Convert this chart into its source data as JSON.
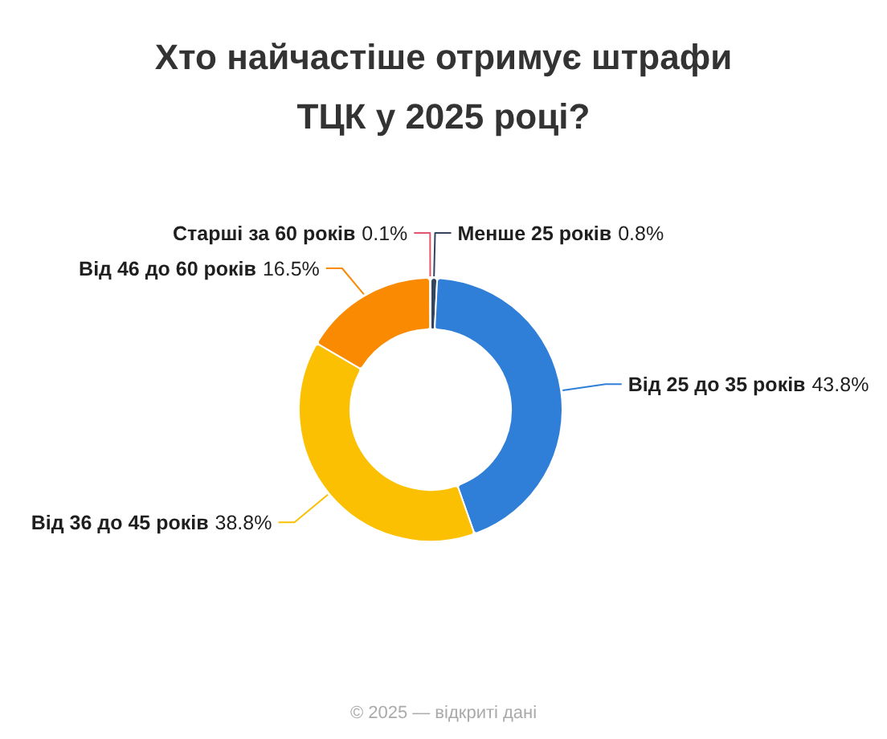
{
  "chart_data": {
    "type": "donut",
    "title": "Хто найчастіше отримує штрафи ТЦК у 2025 році?",
    "categories": [
      "Менше 25 років",
      "Від 25 до 35 років",
      "Від 36 до 45 років",
      "Від 46 до 60 років",
      "Старші за 60 років"
    ],
    "values": [
      0.8,
      43.8,
      38.8,
      16.5,
      0.1
    ],
    "colors": [
      "#34445e",
      "#2f7fd8",
      "#fcc002",
      "#fa8a02",
      "#e0566c"
    ],
    "value_labels": [
      "0.8%",
      "43.8%",
      "38.8%",
      "16.5%",
      "0.1%"
    ],
    "annotations": [
      "© 2025 — відкриті дані"
    ]
  }
}
